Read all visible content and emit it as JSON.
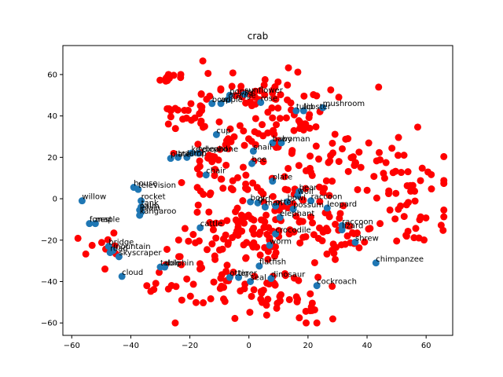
{
  "chart_data": {
    "type": "scatter",
    "title": "crab",
    "xlabel": "",
    "ylabel": "",
    "xlim": [
      -63,
      69
    ],
    "ylim": [
      -66,
      74
    ],
    "xticks": [
      -60,
      -40,
      -20,
      0,
      20,
      40,
      60
    ],
    "yticks": [
      -60,
      -40,
      -20,
      0,
      20,
      40,
      60
    ],
    "grid": false,
    "colors": {
      "labeled": "#1f77b4",
      "unlabeled": "#ff0000"
    },
    "labeled_points": [
      {
        "x": -56.5,
        "y": -1,
        "label": "willow"
      },
      {
        "x": -54,
        "y": -12,
        "label": "forest"
      },
      {
        "x": -52,
        "y": -12,
        "label": "maple"
      },
      {
        "x": -47.5,
        "y": -23,
        "label": "bridge"
      },
      {
        "x": -47,
        "y": -26,
        "label": "road"
      },
      {
        "x": -46,
        "y": -25,
        "label": "mountain"
      },
      {
        "x": -44,
        "y": -28,
        "label": "skyscraper"
      },
      {
        "x": -43,
        "y": -37.5,
        "label": "cloud"
      },
      {
        "x": -39,
        "y": 5.5,
        "label": "house"
      },
      {
        "x": -37.5,
        "y": 4.5,
        "label": "television"
      },
      {
        "x": -36.5,
        "y": -1,
        "label": "rocket"
      },
      {
        "x": -36.5,
        "y": -4,
        "label": "tank"
      },
      {
        "x": -37,
        "y": -5.5,
        "label": "palm"
      },
      {
        "x": -36.5,
        "y": -6.5,
        "label": "plain"
      },
      {
        "x": -37,
        "y": -8,
        "label": "kangaroo"
      },
      {
        "x": -30,
        "y": -33,
        "label": "table"
      },
      {
        "x": -28.5,
        "y": -33,
        "label": "dolphin"
      },
      {
        "x": -26.5,
        "y": 19.5,
        "label": "plate"
      },
      {
        "x": -24,
        "y": 20,
        "label": "tractor"
      },
      {
        "x": -21,
        "y": 20,
        "label": "lamp"
      },
      {
        "x": -19.5,
        "y": 22,
        "label": "keyboard"
      },
      {
        "x": -17,
        "y": 22,
        "label": "telephone"
      },
      {
        "x": -14.5,
        "y": 11.5,
        "label": "chair"
      },
      {
        "x": -16.5,
        "y": -14,
        "label": "cattle"
      },
      {
        "x": -12.5,
        "y": 46,
        "label": "bowl"
      },
      {
        "x": -9.5,
        "y": 46,
        "label": "apple"
      },
      {
        "x": -7,
        "y": 48,
        "label": "orange"
      },
      {
        "x": -11,
        "y": 31,
        "label": "cup"
      },
      {
        "x": -6.5,
        "y": 50,
        "label": "poppy"
      },
      {
        "x": -1.5,
        "y": 50.5,
        "label": "sunflower"
      },
      {
        "x": 4,
        "y": 46.5,
        "label": "rose"
      },
      {
        "x": 1.5,
        "y": 23,
        "label": "snail"
      },
      {
        "x": 1,
        "y": 17,
        "label": "bee"
      },
      {
        "x": 8,
        "y": 8.5,
        "label": "plate"
      },
      {
        "x": 8,
        "y": 27,
        "label": "baby"
      },
      {
        "x": 11,
        "y": 27,
        "label": "woman"
      },
      {
        "x": 16,
        "y": 42.5,
        "label": "tulip"
      },
      {
        "x": 18.5,
        "y": 42.5,
        "label": "lobster"
      },
      {
        "x": 25,
        "y": 44,
        "label": "mushroom"
      },
      {
        "x": 17,
        "y": 3.5,
        "label": "bear"
      },
      {
        "x": 16.5,
        "y": 1.5,
        "label": "wolf"
      },
      {
        "x": 0.5,
        "y": -1.5,
        "label": "boy"
      },
      {
        "x": 3,
        "y": -2,
        "label": "girl"
      },
      {
        "x": 5.5,
        "y": -4,
        "label": "man"
      },
      {
        "x": 9,
        "y": -3.5,
        "label": "otter"
      },
      {
        "x": 10.5,
        "y": -9,
        "label": "elephant"
      },
      {
        "x": 13,
        "y": -1.5,
        "label": "bowl"
      },
      {
        "x": 15,
        "y": -5,
        "label": "possum"
      },
      {
        "x": 21,
        "y": -1,
        "label": "raccoon"
      },
      {
        "x": 26.5,
        "y": -4.5,
        "label": "leopard"
      },
      {
        "x": 9,
        "y": -17,
        "label": "crocodile"
      },
      {
        "x": 31.5,
        "y": -15,
        "label": "lizard"
      },
      {
        "x": 31.5,
        "y": -13,
        "label": "raccoon"
      },
      {
        "x": 36,
        "y": -21,
        "label": "shrew"
      },
      {
        "x": 43,
        "y": -31,
        "label": "chimpanzee"
      },
      {
        "x": 7,
        "y": -22.5,
        "label": "worm"
      },
      {
        "x": 3.5,
        "y": -32.5,
        "label": "flatfish"
      },
      {
        "x": -6.5,
        "y": -38,
        "label": "otter"
      },
      {
        "x": -3.5,
        "y": -38,
        "label": "tiger"
      },
      {
        "x": 0.5,
        "y": -40,
        "label": "seal"
      },
      {
        "x": 7.5,
        "y": -38.5,
        "label": "dinosaur"
      },
      {
        "x": 23,
        "y": -42,
        "label": "cockroach"
      }
    ]
  }
}
